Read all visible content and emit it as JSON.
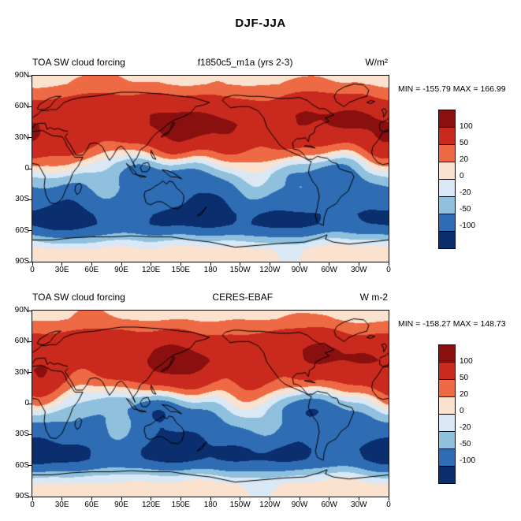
{
  "page": {
    "title": "DJF-JJA"
  },
  "panels": [
    {
      "title_left": "TOA SW cloud forcing",
      "title_center": "f1850c5_m1a (yrs 2-3)",
      "units": "W/m²",
      "stats": "MIN = -155.79 MAX = 166.99"
    },
    {
      "title_left": "TOA SW cloud forcing",
      "title_center": "CERES-EBAF",
      "units": "W m-2",
      "stats": "MIN = -158.27 MAX = 148.73"
    }
  ],
  "axes": {
    "lat_ticks": [
      "90N",
      "60N",
      "30N",
      "0",
      "30S",
      "60S",
      "90S"
    ],
    "lon_ticks": [
      "0",
      "30E",
      "60E",
      "90E",
      "120E",
      "150E",
      "180",
      "150W",
      "120W",
      "90W",
      "60W",
      "30W",
      "0"
    ]
  },
  "chart_data": [
    {
      "type": "heatmap",
      "title": "TOA SW cloud forcing",
      "subtitle": "f1850c5_m1a (yrs 2-3)",
      "units": "W/m²",
      "season_difference": "DJF-JJA",
      "min": -155.79,
      "max": 166.99,
      "lon_range": [
        0,
        360
      ],
      "lat_range": [
        -90,
        90
      ],
      "colorbar": {
        "levels": [
          -100,
          -50,
          -20,
          0,
          20,
          50,
          100
        ],
        "colors": [
          "#0a2e6e",
          "#2e6db4",
          "#8fc1de",
          "#d9e8f4",
          "#fae2cf",
          "#ee6a45",
          "#c92a1d",
          "#8a1010"
        ]
      },
      "zonal_mean_estimate": {
        "lat": [
          90,
          82,
          72,
          62,
          52,
          42,
          32,
          22,
          14,
          6,
          0,
          -6,
          -14,
          -24,
          -34,
          -44,
          -54,
          -62,
          -70,
          -78,
          -90
        ],
        "value": [
          14,
          20,
          48,
          72,
          88,
          90,
          80,
          62,
          35,
          5,
          -10,
          -28,
          -48,
          -68,
          -82,
          -96,
          -92,
          -60,
          -20,
          6,
          10
        ]
      }
    },
    {
      "type": "heatmap",
      "title": "TOA SW cloud forcing",
      "subtitle": "CERES-EBAF",
      "units": "W m-2",
      "season_difference": "DJF-JJA",
      "min": -158.27,
      "max": 148.73,
      "lon_range": [
        0,
        360
      ],
      "lat_range": [
        -90,
        90
      ],
      "colorbar": {
        "levels": [
          -100,
          -50,
          -20,
          0,
          20,
          50,
          100
        ],
        "colors": [
          "#0a2e6e",
          "#2e6db4",
          "#8fc1de",
          "#d9e8f4",
          "#fae2cf",
          "#ee6a45",
          "#c92a1d",
          "#8a1010"
        ]
      },
      "zonal_mean_estimate": {
        "lat": [
          90,
          82,
          72,
          62,
          52,
          42,
          32,
          22,
          14,
          6,
          0,
          -6,
          -14,
          -24,
          -34,
          -44,
          -54,
          -62,
          -70,
          -78,
          -90
        ],
        "value": [
          12,
          18,
          45,
          70,
          86,
          88,
          78,
          60,
          33,
          4,
          -12,
          -30,
          -50,
          -70,
          -84,
          -94,
          -90,
          -58,
          -18,
          5,
          8
        ]
      }
    }
  ]
}
